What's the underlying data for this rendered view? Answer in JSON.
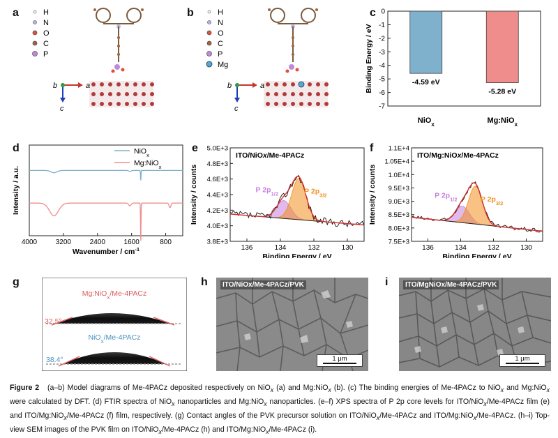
{
  "panels": {
    "a": {
      "letter": "a",
      "legend": [
        "H",
        "N",
        "O",
        "C",
        "P"
      ],
      "axes": {
        "b": "b",
        "a": "a",
        "c": "c"
      }
    },
    "b": {
      "letter": "b",
      "legend": [
        "H",
        "N",
        "O",
        "C",
        "P",
        "Mg"
      ],
      "axes": {
        "b": "b",
        "a": "a",
        "c": "c"
      }
    },
    "c": {
      "letter": "c"
    },
    "d": {
      "letter": "d",
      "legend": [
        "NiOx",
        "Mg:NiOx"
      ]
    },
    "e": {
      "letter": "e",
      "title": "ITO/NiOx/Me-4PACz",
      "peak1": "P 2p1/2",
      "peak2": "P 2p3/2"
    },
    "f": {
      "letter": "f",
      "title": "ITO/Mg:NiOx/Me-4PACz",
      "peak1": "P 2p1/2",
      "peak2": "P 2p3/2"
    },
    "g": {
      "letter": "g",
      "top_label": "Mg:NiOx/Me-4PACz",
      "top_angle": "32.5°",
      "bottom_label": "NiOx/Me-4PACz",
      "bottom_angle": "38.4°"
    },
    "h": {
      "letter": "h",
      "label": "ITO/NiOx/Me-4PACz/PVK",
      "scale": "1 μm"
    },
    "i": {
      "letter": "i",
      "label": "ITO/MgNiOx/Me-4PACz/PVK",
      "scale": "1 μm"
    }
  },
  "colors": {
    "nio": "#7fb0cc",
    "mgnio": "#ef8d8d",
    "fit": "#d9302a",
    "p12": "#c77fe0",
    "p32": "#f0901e"
  },
  "caption": {
    "label": "Figure 2",
    "text": "(a–b) Model diagrams of Me-4PACz deposited respectively on NiOx (a) and Mg:NiOx (b). (c) The binding energies of Me-4PACz to NiOx and Mg:NiOx were calculated by DFT. (d) FTIR spectra of NiOx nanoparticles and Mg:NiOx nanoparticles. (e–f) XPS spectra of P 2p core levels for ITO/NiOx/Me-4PACz film (e) and ITO/Mg:NiOx/Me-4PACz (f) film, respectively. (g) Contact angles of the PVK precursor solution on ITO/NiOx/Me-4PACz and ITO/Mg:NiOx/Me-4PACz. (h–i) Top-view SEM images of the PVK film on ITO/NiOx/Me-4PACz (h) and ITO/Mg:NiOx/Me-4PACz (i)."
  },
  "chart_data": [
    {
      "id": "c",
      "type": "bar",
      "title": "",
      "categories": [
        "NiOx",
        "Mg:NiOx"
      ],
      "values": [
        -4.59,
        -5.28
      ],
      "value_labels": [
        "-4.59 eV",
        "-5.28 eV"
      ],
      "xlabel": "",
      "ylabel": "Binding Energy / eV",
      "ylim": [
        -7,
        0
      ],
      "yticks": [
        0,
        -1,
        -2,
        -3,
        -4,
        -5,
        -6,
        -7
      ]
    },
    {
      "id": "d",
      "type": "line",
      "title": "",
      "xlabel": "Wavenumber / cm-1",
      "ylabel": "Intensity / a.u.",
      "xlim": [
        4000,
        400
      ],
      "xticks": [
        4000,
        3200,
        2400,
        1600,
        800
      ],
      "series": [
        {
          "name": "NiOx",
          "baseline": 0.72,
          "dips": [
            [
              3420,
              0.025,
              100
            ],
            [
              1640,
              0.01,
              40
            ],
            [
              1385,
              0.11,
              8
            ]
          ]
        },
        {
          "name": "Mg:NiOx",
          "baseline": 0.36,
          "dips": [
            [
              3420,
              0.14,
              150
            ],
            [
              1640,
              0.03,
              40
            ],
            [
              1385,
              0.42,
              8
            ],
            [
              700,
              0.05,
              30
            ]
          ]
        }
      ]
    },
    {
      "id": "e",
      "type": "line",
      "title": "ITO/NiOx/Me-4PACz",
      "xlabel": "Binding Energy / eV",
      "ylabel": "Intensity / counts",
      "xlim": [
        137,
        129
      ],
      "xticks": [
        136,
        134,
        132,
        130
      ],
      "ylim": [
        3800,
        5000
      ],
      "yticks": [
        3800,
        4000,
        4200,
        4400,
        4600,
        4800,
        5000
      ],
      "ytick_labels": [
        "3.8E+3",
        "4.0E+3",
        "4.2E+3",
        "4.4E+3",
        "4.6E+3",
        "4.8E+3",
        "5.0E+3"
      ],
      "background": [
        [
          137,
          4150
        ],
        [
          129,
          4010
        ]
      ],
      "peaks": [
        {
          "name": "P 2p1/2",
          "center": 133.8,
          "height": 230,
          "width": 0.6
        },
        {
          "name": "P 2p3/2",
          "center": 132.9,
          "height": 530,
          "width": 0.6
        }
      ],
      "noise": 50
    },
    {
      "id": "f",
      "type": "line",
      "title": "ITO/Mg:NiOx/Me-4PACz",
      "xlabel": "Binding Energy / eV",
      "ylabel": "Intensity / counts",
      "xlim": [
        137,
        129
      ],
      "xticks": [
        136,
        134,
        132,
        130
      ],
      "ylim": [
        7500,
        11000
      ],
      "yticks": [
        7500,
        8000,
        8500,
        9000,
        9500,
        10000,
        10500,
        11000
      ],
      "ytick_labels": [
        "7.5E+3",
        "8.0E+3",
        "8.5E+3",
        "9.0E+3",
        "9.5E+3",
        "1.0E+4",
        "1.05E+4",
        "1.1E+4"
      ],
      "background": [
        [
          137,
          8400
        ],
        [
          129,
          7880
        ]
      ],
      "peaks": [
        {
          "name": "P 2p1/2",
          "center": 133.9,
          "height": 620,
          "width": 0.6
        },
        {
          "name": "P 2p3/2",
          "center": 133.1,
          "height": 1420,
          "width": 0.6
        }
      ],
      "noise": 80
    }
  ]
}
